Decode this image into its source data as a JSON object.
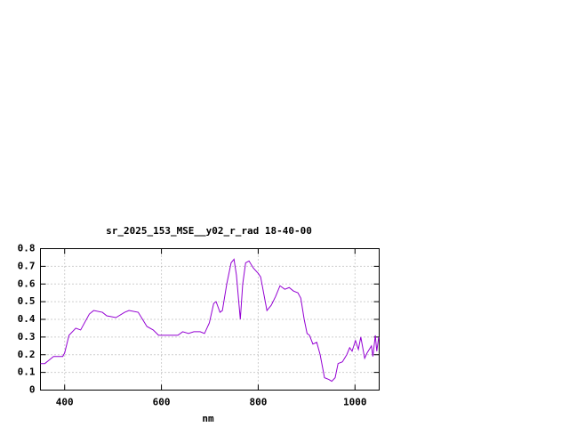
{
  "chart_data": {
    "type": "line",
    "title": "sr_2025_153_MSE__y02_r_rad 18-40-00",
    "x_label": "nm",
    "color": "#9400d3",
    "x": [
      350,
      359,
      368,
      377,
      387,
      396,
      400,
      409,
      423,
      433,
      451,
      460,
      478,
      487,
      506,
      524,
      533,
      552,
      570,
      583,
      594,
      616,
      634,
      644,
      656,
      667,
      680,
      689,
      699,
      708,
      713,
      721,
      726,
      735,
      744,
      750,
      755,
      763,
      768,
      774,
      781,
      790,
      800,
      805,
      818,
      827,
      836,
      845,
      855,
      864,
      873,
      882,
      888,
      895,
      901,
      906,
      913,
      921,
      928,
      937,
      946,
      952,
      959,
      965,
      974,
      983,
      989,
      994,
      1001,
      1007,
      1012,
      1020,
      1025,
      1034,
      1037,
      1042,
      1045,
      1049
    ],
    "values": [
      0.15,
      0.15,
      0.17,
      0.19,
      0.19,
      0.19,
      0.21,
      0.31,
      0.35,
      0.34,
      0.43,
      0.45,
      0.44,
      0.42,
      0.41,
      0.44,
      0.45,
      0.44,
      0.36,
      0.34,
      0.31,
      0.31,
      0.31,
      0.33,
      0.32,
      0.33,
      0.33,
      0.32,
      0.38,
      0.49,
      0.5,
      0.44,
      0.45,
      0.6,
      0.72,
      0.74,
      0.65,
      0.4,
      0.6,
      0.72,
      0.73,
      0.69,
      0.66,
      0.64,
      0.45,
      0.48,
      0.53,
      0.59,
      0.57,
      0.58,
      0.56,
      0.55,
      0.52,
      0.4,
      0.32,
      0.31,
      0.26,
      0.27,
      0.2,
      0.07,
      0.06,
      0.05,
      0.07,
      0.15,
      0.16,
      0.2,
      0.24,
      0.22,
      0.28,
      0.23,
      0.3,
      0.18,
      0.21,
      0.25,
      0.19,
      0.31,
      0.22,
      0.3
    ],
    "xlim": [
      350,
      1050
    ],
    "xticks": [
      400,
      600,
      800,
      1000
    ],
    "ylim": [
      0,
      0.8
    ],
    "yticks": [
      0,
      0.1,
      0.2,
      0.3,
      0.4,
      0.5,
      0.6,
      0.7,
      0.8
    ],
    "grid": true
  }
}
